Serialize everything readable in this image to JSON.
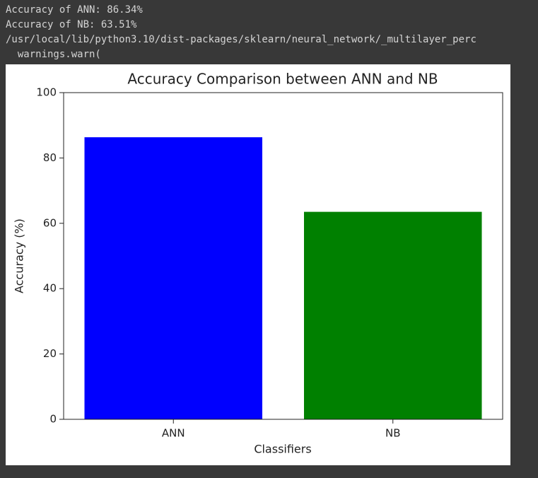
{
  "console": {
    "lines": [
      "Accuracy of ANN: 86.34%",
      "Accuracy of NB: 63.51%",
      "/usr/local/lib/python3.10/dist-packages/sklearn/neural_network/_multilayer_perc",
      "  warnings.warn("
    ]
  },
  "chart_data": {
    "type": "bar",
    "title": "Accuracy Comparison between ANN and NB",
    "x_label": "Classifiers",
    "y_label": "Accuracy (%)",
    "categories": [
      "ANN",
      "NB"
    ],
    "values": [
      86.34,
      63.51
    ],
    "colors": [
      "blue",
      "green"
    ],
    "ylim": [
      0,
      100
    ],
    "yticks": [
      0,
      20,
      40,
      60,
      80,
      100
    ],
    "grid": false
  }
}
